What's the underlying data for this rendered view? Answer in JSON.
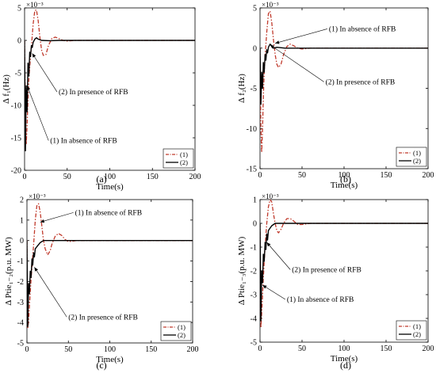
{
  "chart_data": [
    {
      "type": "line",
      "panel_label": "(a)",
      "ylabel": "Δ f₁(Hz)",
      "xlabel": "Time(s)",
      "y_exponent": "×10⁻³",
      "xlim": [
        0,
        200
      ],
      "ylim": [
        -20,
        5
      ],
      "xticks": [
        0,
        50,
        100,
        150,
        200
      ],
      "yticks": [
        -20,
        -15,
        -10,
        -5,
        0,
        5
      ],
      "legend_position": "bottom-right",
      "series": [
        {
          "name": "(1)",
          "color": "#c0392b",
          "style": "dash-dot",
          "x": [
            0,
            1,
            2,
            3,
            4,
            5,
            6,
            8,
            10,
            12,
            14,
            16,
            18,
            20,
            22,
            25,
            28,
            32,
            36,
            40,
            45,
            50,
            60,
            70,
            80,
            100,
            150,
            200
          ],
          "y": [
            0,
            -12,
            -16,
            -13,
            -9,
            -6,
            -4,
            -1,
            2.5,
            4.6,
            4.7,
            3,
            0.5,
            -1.5,
            -2.3,
            -2.2,
            -0.8,
            0.3,
            0.5,
            0.3,
            0,
            -0.1,
            0,
            0,
            0,
            0,
            0,
            0
          ]
        },
        {
          "name": "(2)",
          "color": "#000000",
          "style": "solid",
          "x": [
            0,
            1,
            2,
            3,
            4,
            5,
            6,
            7,
            8,
            9,
            10,
            12,
            14,
            16,
            20,
            30,
            40,
            60,
            80,
            100,
            150,
            200
          ],
          "y": [
            0,
            -17,
            -7,
            -11,
            -3.5,
            -5.5,
            -1.8,
            -2.5,
            -0.8,
            -1.1,
            -0.3,
            0.2,
            0.4,
            0.2,
            0,
            -0.05,
            0,
            0,
            0,
            0,
            0,
            0
          ]
        }
      ],
      "annotations": [
        {
          "text": "(2) In presence  of RFB",
          "x": 40,
          "y": -8.3,
          "arrow_x": 9,
          "arrow_y": -2
        },
        {
          "text": "(1) In absence  of RFB",
          "x": 30,
          "y": -15.8,
          "arrow_x": 3,
          "arrow_y": -7
        }
      ]
    },
    {
      "type": "line",
      "panel_label": "(b)",
      "ylabel": "Δ f₂(Hz)",
      "xlabel": "Time(s)",
      "y_exponent": "×10⁻³",
      "xlim": [
        0,
        200
      ],
      "ylim": [
        -15,
        5
      ],
      "xticks": [
        0,
        50,
        100,
        150,
        200
      ],
      "yticks": [
        -15,
        -10,
        -5,
        0,
        5
      ],
      "legend_position": "bottom-right",
      "series": [
        {
          "name": "(1)",
          "color": "#c0392b",
          "style": "dash-dot",
          "x": [
            0,
            1,
            2,
            3,
            4,
            5,
            6,
            8,
            10,
            12,
            14,
            16,
            18,
            20,
            22,
            25,
            28,
            32,
            36,
            40,
            45,
            50,
            60,
            70,
            80,
            100,
            150,
            200
          ],
          "y": [
            0,
            -10,
            -13,
            -10,
            -6,
            -3,
            -1,
            2,
            4.3,
            4.6,
            3.2,
            1,
            -0.8,
            -2,
            -2.4,
            -2,
            -0.8,
            0.2,
            0.5,
            0.3,
            0,
            -0.1,
            0,
            0,
            0,
            0,
            0,
            0
          ]
        },
        {
          "name": "(2)",
          "color": "#000000",
          "style": "solid",
          "x": [
            0,
            1,
            2,
            3,
            4,
            5,
            6,
            7,
            8,
            9,
            10,
            12,
            14,
            16,
            20,
            30,
            40,
            60,
            80,
            100,
            150,
            200
          ],
          "y": [
            0,
            -7,
            -3,
            -5,
            -1.8,
            -3,
            -0.8,
            -1.5,
            -0.2,
            -0.6,
            0.1,
            0.5,
            0.3,
            0,
            0.1,
            0,
            0,
            0,
            0,
            0,
            0,
            0
          ]
        }
      ],
      "annotations": [
        {
          "text": "(1) In absence  of RFB",
          "x": 82,
          "y": 2.1,
          "arrow_x": 18,
          "arrow_y": 0.6
        },
        {
          "text": "(2) In presence  of RFB",
          "x": 78,
          "y": -4.5,
          "arrow_x": 12,
          "arrow_y": 0.4
        }
      ]
    },
    {
      "type": "line",
      "panel_label": "(c)",
      "ylabel": "Δ Ptie₁₋₂(p.u. MW)",
      "xlabel": "Time(s)",
      "y_exponent": "×10⁻³",
      "xlim": [
        0,
        200
      ],
      "ylim": [
        -5,
        2
      ],
      "xticks": [
        0,
        50,
        100,
        150,
        200
      ],
      "yticks": [
        -5,
        -4,
        -3,
        -2,
        -1,
        0,
        1,
        2
      ],
      "legend_position": "bottom-right",
      "series": [
        {
          "name": "(1)",
          "color": "#c0392b",
          "style": "dash-dot",
          "x": [
            0,
            1,
            2,
            3,
            4,
            5,
            6,
            8,
            10,
            12,
            14,
            16,
            18,
            20,
            22,
            25,
            28,
            30,
            34,
            38,
            42,
            46,
            50,
            55,
            60,
            80,
            100,
            150,
            200
          ],
          "y": [
            0,
            -4.3,
            -3.9,
            -3.2,
            -2.5,
            -1.9,
            -1.3,
            -0.2,
            1,
            1.7,
            1.8,
            1.4,
            0.7,
            0,
            -0.4,
            -0.7,
            -0.5,
            -0.2,
            0.2,
            0.35,
            0.25,
            0.05,
            -0.05,
            -0.03,
            0,
            0,
            0,
            0,
            0
          ]
        },
        {
          "name": "(2)",
          "color": "#000000",
          "style": "solid",
          "x": [
            0,
            1,
            2,
            3,
            4,
            5,
            6,
            7,
            8,
            9,
            10,
            12,
            14,
            16,
            18,
            20,
            25,
            30,
            40,
            60,
            100,
            150,
            200
          ],
          "y": [
            0,
            -4.2,
            -2.1,
            -2.6,
            -1.5,
            -1.8,
            -0.9,
            -1.2,
            -0.6,
            -0.8,
            -0.4,
            -0.3,
            -0.2,
            -0.1,
            -0.05,
            0,
            0,
            0,
            0,
            0,
            0,
            0,
            0
          ]
        }
      ],
      "annotations": [
        {
          "text": "(1) In absence  of RFB",
          "x": 58,
          "y": 1.25,
          "arrow_x": 16,
          "arrow_y": 0.9
        },
        {
          "text": "(2) In presence  of RFB",
          "x": 50,
          "y": -3.85,
          "arrow_x": 9,
          "arrow_y": -1.3
        }
      ]
    },
    {
      "type": "line",
      "panel_label": "(d)",
      "ylabel": "Δ Ptie₁₋₃(p.u. MW)",
      "xlabel": "Time(s)",
      "y_exponent": "×10⁻³",
      "xlim": [
        0,
        200
      ],
      "ylim": [
        -5,
        1
      ],
      "xticks": [
        0,
        50,
        100,
        150,
        200
      ],
      "yticks": [
        -5,
        -4,
        -3,
        -2,
        -1,
        0,
        1
      ],
      "legend_position": "bottom-right",
      "series": [
        {
          "name": "(1)",
          "color": "#c0392b",
          "style": "dash-dot",
          "x": [
            0,
            1,
            2,
            3,
            4,
            5,
            6,
            8,
            10,
            12,
            14,
            16,
            18,
            20,
            22,
            25,
            28,
            32,
            36,
            40,
            45,
            50,
            60,
            80,
            100,
            150,
            200
          ],
          "y": [
            0,
            -4.4,
            -3.8,
            -3,
            -2.3,
            -1.6,
            -1,
            0,
            0.7,
            1,
            0.9,
            0.4,
            0,
            -0.3,
            -0.4,
            -0.25,
            0,
            0.2,
            0.2,
            0.1,
            -0.05,
            -0.05,
            0,
            0,
            0,
            0,
            0
          ]
        },
        {
          "name": "(2)",
          "color": "#000000",
          "style": "solid",
          "x": [
            0,
            1,
            2,
            3,
            4,
            5,
            6,
            7,
            8,
            9,
            10,
            12,
            14,
            16,
            18,
            20,
            25,
            30,
            40,
            60,
            100,
            150,
            200
          ],
          "y": [
            0,
            -4.1,
            -2,
            -2.5,
            -1.3,
            -1.6,
            -0.8,
            -1.1,
            -0.45,
            -0.7,
            -0.3,
            -0.2,
            -0.1,
            -0.05,
            0,
            0,
            0,
            0,
            0,
            0,
            0,
            0,
            0
          ]
        }
      ],
      "annotations": [
        {
          "text": "(2) In presence  of RFB",
          "x": 38,
          "y": -2.05,
          "arrow_x": 8,
          "arrow_y": -0.8
        },
        {
          "text": "(1) In absence  of RFB",
          "x": 32,
          "y": -3.3,
          "arrow_x": 3,
          "arrow_y": -2.6
        }
      ]
    }
  ]
}
